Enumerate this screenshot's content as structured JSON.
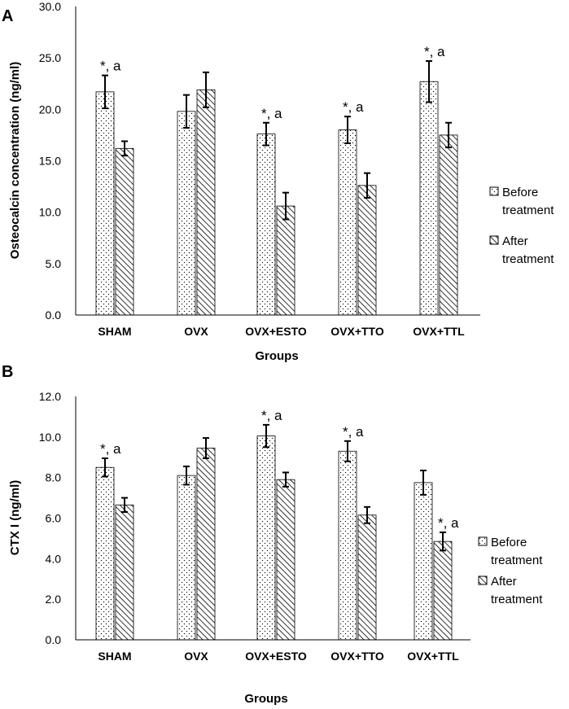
{
  "figure": {
    "panels": [
      "A",
      "B"
    ]
  },
  "colors": {
    "axis": "#000000",
    "bar_outline": "#000000",
    "bar_fill": "#ffffff",
    "pattern": "#000000"
  },
  "chart_data": [
    {
      "panel": "A",
      "type": "bar",
      "title": "",
      "xlabel": "Groups",
      "ylabel": "Osteocalcin concentration (ng/ml)",
      "ylim": [
        0,
        30
      ],
      "yticks": [
        "0.0",
        "5.0",
        "10.0",
        "15.0",
        "20.0",
        "25.0",
        "30.0"
      ],
      "grid": false,
      "legend_position": "right",
      "categories": [
        "SHAM",
        "OVX",
        "OVX+ESTO",
        "OVX+TTO",
        "OVX+TTL"
      ],
      "series": [
        {
          "name": "Before treatment",
          "legend_lines": [
            "Before",
            "treatment"
          ],
          "pattern": "dots",
          "values": [
            21.7,
            19.8,
            17.6,
            18.0,
            22.7
          ],
          "errors": [
            1.6,
            1.6,
            1.1,
            1.3,
            2.0
          ]
        },
        {
          "name": "After treatment",
          "legend_lines": [
            "After",
            "treatment"
          ],
          "pattern": "hatch",
          "values": [
            16.2,
            21.9,
            10.6,
            12.6,
            17.5
          ],
          "errors": [
            0.7,
            1.7,
            1.3,
            1.2,
            1.2
          ]
        }
      ],
      "annotations": [
        {
          "category": "SHAM",
          "series": "Before treatment",
          "text": "*, a"
        },
        {
          "category": "OVX+ESTO",
          "series": "Before treatment",
          "text": "*, a"
        },
        {
          "category": "OVX+TTO",
          "series": "Before treatment",
          "text": "*, a"
        },
        {
          "category": "OVX+TTL",
          "series": "Before treatment",
          "text": "*, a"
        }
      ]
    },
    {
      "panel": "B",
      "type": "bar",
      "title": "",
      "xlabel": "Groups",
      "ylabel": "CTX I (ng/ml)",
      "ylim": [
        0,
        12
      ],
      "yticks": [
        "0.0",
        "2.0",
        "4.0",
        "6.0",
        "8.0",
        "10.0",
        "12.0"
      ],
      "grid": false,
      "legend_position": "right",
      "categories": [
        "SHAM",
        "OVX",
        "OVX+ESTO",
        "OVX+TTO",
        "OVX+TTL"
      ],
      "series": [
        {
          "name": "Before treatment",
          "legend_lines": [
            "Before",
            "treatment"
          ],
          "pattern": "dots",
          "values": [
            8.5,
            8.1,
            10.05,
            9.3,
            7.75
          ],
          "errors": [
            0.45,
            0.45,
            0.55,
            0.5,
            0.6
          ]
        },
        {
          "name": "After treatment",
          "legend_lines": [
            "After",
            "treatment"
          ],
          "pattern": "hatch",
          "values": [
            6.65,
            9.45,
            7.9,
            6.15,
            4.85
          ],
          "errors": [
            0.35,
            0.5,
            0.35,
            0.4,
            0.45
          ]
        }
      ],
      "annotations": [
        {
          "category": "SHAM",
          "series": "Before treatment",
          "text": "*, a"
        },
        {
          "category": "OVX+ESTO",
          "series": "Before treatment",
          "text": "*, a"
        },
        {
          "category": "OVX+TTO",
          "series": "Before treatment",
          "text": "*, a"
        },
        {
          "category": "OVX+TTL",
          "series": "After treatment",
          "text": "*, a"
        }
      ]
    }
  ]
}
